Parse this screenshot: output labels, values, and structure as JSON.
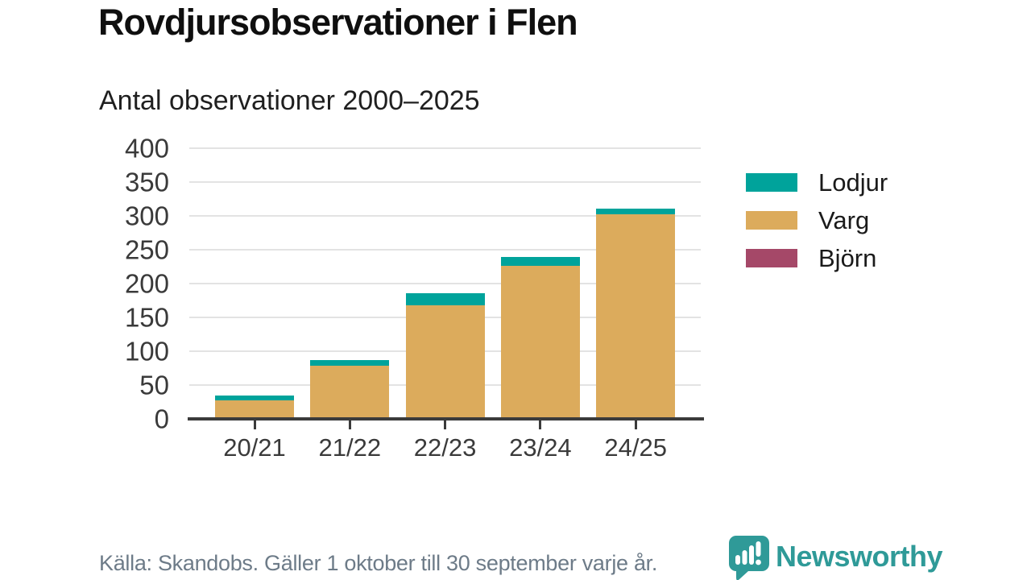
{
  "header": {
    "title": "Rovdjursobservationer i Flen",
    "subtitle": "Antal observationer 2000–2025"
  },
  "chart_data": {
    "type": "bar",
    "stacked": true,
    "title": "Rovdjursobservationer i Flen",
    "subtitle": "Antal observationer 2000–2025",
    "categories": [
      "20/21",
      "21/22",
      "22/23",
      "23/24",
      "24/25"
    ],
    "series": [
      {
        "name": "Lodjur",
        "color": "#00a39b",
        "values": [
          7,
          8,
          18,
          13,
          9
        ]
      },
      {
        "name": "Varg",
        "color": "#dcab5c",
        "values": [
          27,
          79,
          168,
          226,
          302
        ]
      },
      {
        "name": "Björn",
        "color": "#a54868",
        "values": [
          0,
          0,
          0,
          0,
          0
        ]
      }
    ],
    "stack_order_bottom_to_top": [
      "Varg",
      "Lodjur",
      "Björn"
    ],
    "totals": [
      34,
      87,
      186,
      239,
      311
    ],
    "xlabel": "",
    "ylabel": "",
    "ylim": [
      0,
      400
    ],
    "yticks": [
      0,
      50,
      100,
      150,
      200,
      250,
      300,
      350,
      400
    ],
    "grid": true,
    "legend_position": "right"
  },
  "footer": {
    "source": "Källa: Skandobs. Gäller 1 oktober till 30 september varje år.",
    "brand": "Newsworthy"
  },
  "colors": {
    "background": "#ffffff",
    "grid": "#e3e3e3",
    "axis": "#3b3b3b",
    "tick_text": "#3a3a3a",
    "title_text": "#0f0f0f",
    "source_text": "#6d7b88",
    "brand_teal": "#2f9a98"
  },
  "icons": {
    "brand_icon": "newsworthy-speech-bubble-bar-chart-icon"
  }
}
